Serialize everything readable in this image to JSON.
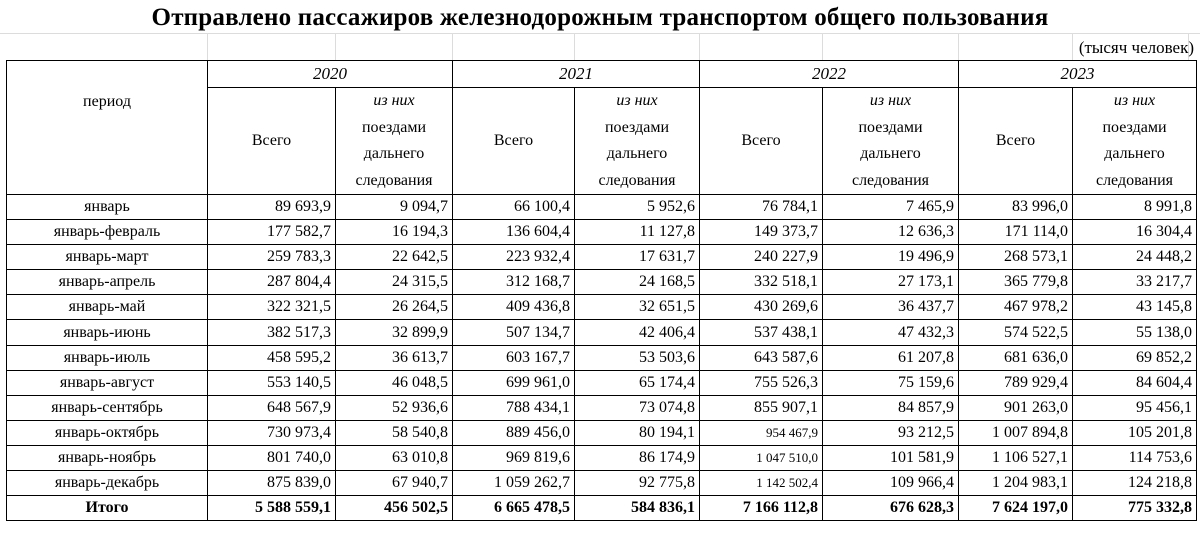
{
  "title": "Отправлено пассажиров железнодорожным транспортом общего пользования",
  "units": "(тысяч человек)",
  "header": {
    "period_label": "период",
    "years": [
      "2020",
      "2021",
      "2022",
      "2023"
    ],
    "col_total": "Всего",
    "col_longdist_line1": "из них",
    "col_longdist_line2": "поездами",
    "col_longdist_line3": "дальнего",
    "col_longdist_line4": "следования"
  },
  "rows": [
    {
      "period": "январь",
      "v": [
        "89 693,9",
        "9 094,7",
        "66 100,4",
        "5 952,6",
        "76 784,1",
        "7 465,9",
        "83 996,0",
        "8 991,8"
      ]
    },
    {
      "period": "январь-февраль",
      "v": [
        "177 582,7",
        "16 194,3",
        "136 604,4",
        "11 127,8",
        "149 373,7",
        "12 636,3",
        "171 114,0",
        "16 304,4"
      ]
    },
    {
      "period": "январь-март",
      "v": [
        "259 783,3",
        "22 642,5",
        "223 932,4",
        "17 631,7",
        "240 227,9",
        "19 496,9",
        "268 573,1",
        "24 448,2"
      ]
    },
    {
      "period": "январь-апрель",
      "v": [
        "287 804,4",
        "24 315,5",
        "312 168,7",
        "24 168,5",
        "332 518,1",
        "27 173,1",
        "365 779,8",
        "33 217,7"
      ]
    },
    {
      "period": "январь-май",
      "v": [
        "322 321,5",
        "26 264,5",
        "409 436,8",
        "32 651,5",
        "430 269,6",
        "36 437,7",
        "467 978,2",
        "43 145,8"
      ]
    },
    {
      "period": "январь-июнь",
      "v": [
        "382 517,3",
        "32 899,9",
        "507 134,7",
        "42 406,4",
        "537 438,1",
        "47 432,3",
        "574 522,5",
        "55 138,0"
      ]
    },
    {
      "period": "январь-июль",
      "v": [
        "458 595,2",
        "36 613,7",
        "603 167,7",
        "53 503,6",
        "643 587,6",
        "61 207,8",
        "681 636,0",
        "69 852,2"
      ]
    },
    {
      "period": "январь-август",
      "v": [
        "553 140,5",
        "46 048,5",
        "699 961,0",
        "65 174,4",
        "755 526,3",
        "75 159,6",
        "789 929,4",
        "84 604,4"
      ]
    },
    {
      "period": "январь-сентябрь",
      "v": [
        "648 567,9",
        "52 936,6",
        "788 434,1",
        "73 074,8",
        "855 907,1",
        "84 857,9",
        "901 263,0",
        "95 456,1"
      ]
    },
    {
      "period": "январь-октябрь",
      "v": [
        "730 973,4",
        "58 540,8",
        "889 456,0",
        "80 194,1",
        "954 467,9",
        "93 212,5",
        "1 007 894,8",
        "105 201,8"
      ]
    },
    {
      "period": "январь-ноябрь",
      "v": [
        "801 740,0",
        "63 010,8",
        "969 819,6",
        "86 174,9",
        "1 047 510,0",
        "101 581,9",
        "1 106 527,1",
        "114 753,6"
      ]
    },
    {
      "period": "январь-декабрь",
      "v": [
        "875 839,0",
        "67 940,7",
        "1 059 262,7",
        "92 775,8",
        "1 142 502,4",
        "109 966,4",
        "1 204 983,1",
        "124 218,8"
      ]
    }
  ],
  "total": {
    "period": "Итого",
    "v": [
      "5 588 559,1",
      "456 502,5",
      "6 665 478,5",
      "584 836,1",
      "7 166 112,8",
      "676 628,3",
      "7 624 197,0",
      "775 332,8"
    ]
  }
}
